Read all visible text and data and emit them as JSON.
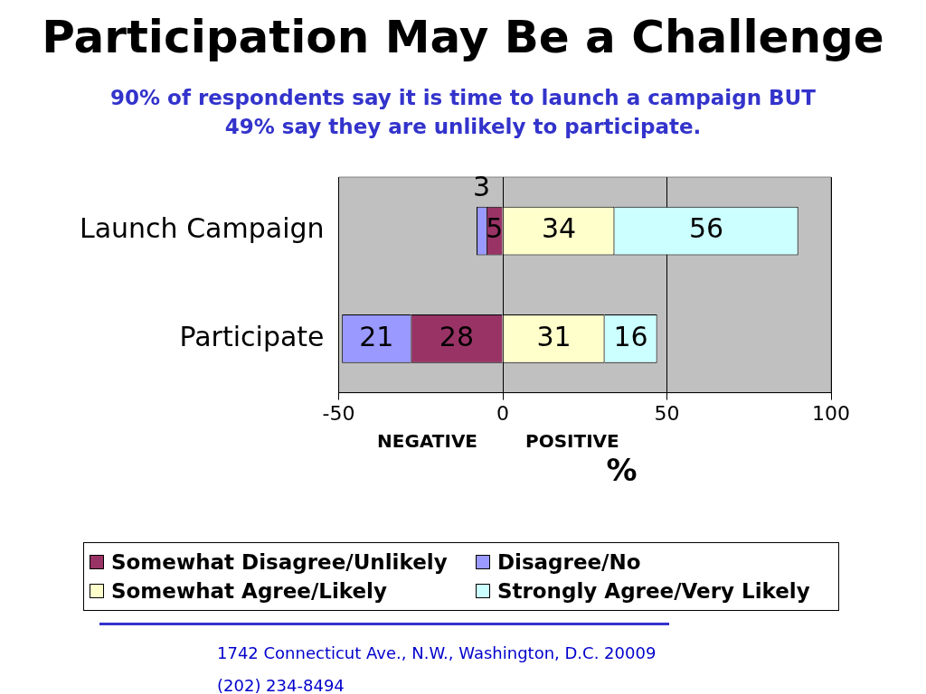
{
  "chart_data": {
    "type": "bar",
    "orientation": "horizontal",
    "title": "Participation May Be a Challenge",
    "subtitle": "90% of respondents say it is time to launch a campaign BUT\n49% say they are unlikely to participate.",
    "categories": [
      "Launch Campaign",
      "Participate"
    ],
    "series": [
      {
        "name": "Somewhat Disagree/Unlikely",
        "color": "#993366",
        "values": [
          5,
          28
        ],
        "base": [
          -5,
          -28
        ],
        "value_labels": [
          "5",
          "28"
        ]
      },
      {
        "name": "Disagree/No",
        "color": "#9999ff",
        "values": [
          3,
          21
        ],
        "base": [
          -8,
          -49
        ],
        "value_labels": [
          "3",
          "21"
        ]
      },
      {
        "name": "Somewhat Agree/Likely",
        "color": "#ffffcc",
        "values": [
          34,
          31
        ],
        "base": [
          0,
          0
        ],
        "value_labels": [
          "34",
          "31"
        ]
      },
      {
        "name": "Strongly Agree/Very Likely",
        "color": "#ccffff",
        "values": [
          56,
          16
        ],
        "base": [
          34,
          31
        ],
        "value_labels": [
          "56",
          "16"
        ]
      }
    ],
    "xlim": [
      -50,
      100
    ],
    "xticks": [
      -50,
      0,
      50,
      100
    ],
    "xlabel": "%",
    "grid": "x",
    "legend": "bottom",
    "annotations": [
      "NEGATIVE",
      "POSITIVE",
      "1742 Connecticut Ave., N.W., Washington, D.C. 20009",
      "(202) 234-8494"
    ]
  }
}
